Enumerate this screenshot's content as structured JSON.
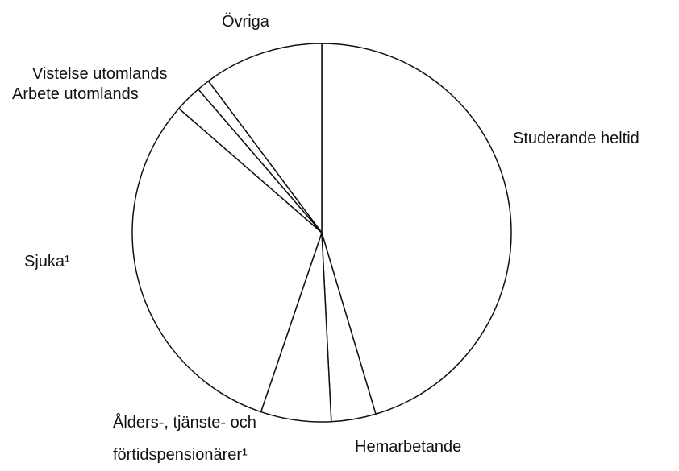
{
  "chart_data": {
    "type": "pie",
    "categories": [
      "Studerande heltid",
      "Hemarbetande",
      "Ålders-, tjänste- och förtidspensionärer¹",
      "Sjuka¹",
      "Arbete utomlands",
      "Vistelse utomlands",
      "Övriga"
    ],
    "values": [
      45.4,
      3.8,
      6.0,
      31.2,
      2.3,
      1.1,
      10.2
    ],
    "color": "#ffffff",
    "edge_color": "#111111"
  }
}
